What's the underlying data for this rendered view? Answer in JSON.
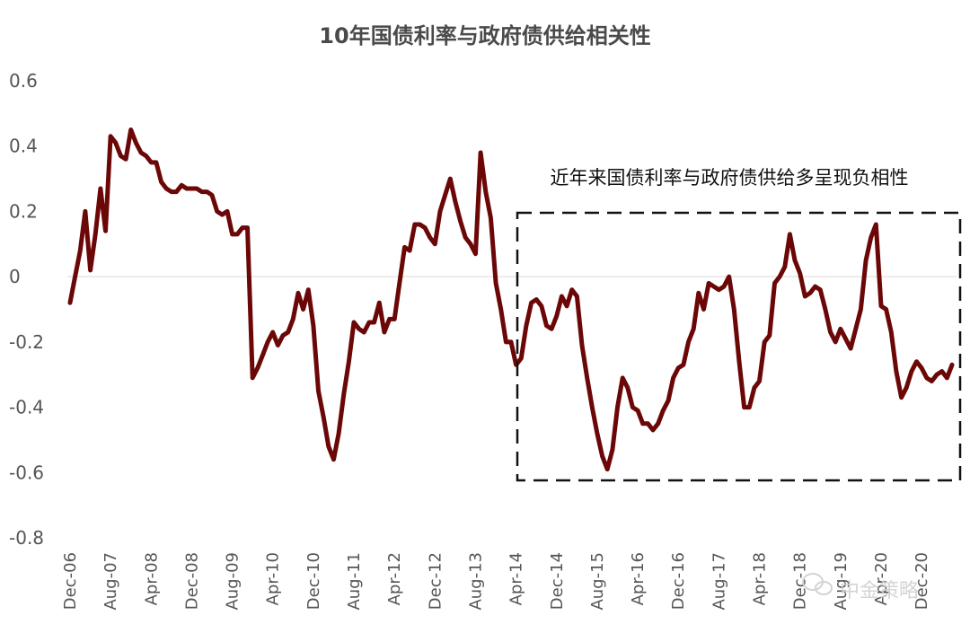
{
  "chart_data": {
    "type": "line",
    "title": "10年国债利率与政府债供给相关性",
    "xlabel": "",
    "ylabel": "",
    "ylim": [
      -0.8,
      0.6
    ],
    "y_ticks": [
      0.6,
      0.4,
      0.2,
      0,
      -0.2,
      -0.4,
      -0.6,
      -0.8
    ],
    "y_tick_labels": [
      "0.6",
      "0.4",
      "0.2",
      "0",
      "-0.2",
      "-0.4",
      "-0.6",
      "-0.8"
    ],
    "x_tick_labels": [
      "Dec-06",
      "Aug-07",
      "Apr-08",
      "Dec-08",
      "Aug-09",
      "Apr-10",
      "Dec-10",
      "Aug-11",
      "Apr-12",
      "Dec-12",
      "Aug-13",
      "Apr-14",
      "Dec-14",
      "Aug-15",
      "Apr-16",
      "Dec-16",
      "Aug-17",
      "Apr-18",
      "Dec-18",
      "Aug-19",
      "Apr-20",
      "Dec-20"
    ],
    "x_start": "2006-12",
    "grid": false,
    "zero_line": true,
    "series": [
      {
        "color": "#6b0707",
        "values": [
          -0.08,
          0.0,
          0.08,
          0.2,
          0.02,
          0.13,
          0.27,
          0.14,
          0.43,
          0.41,
          0.37,
          0.36,
          0.45,
          0.41,
          0.38,
          0.37,
          0.35,
          0.35,
          0.29,
          0.27,
          0.26,
          0.26,
          0.28,
          0.27,
          0.27,
          0.27,
          0.26,
          0.26,
          0.25,
          0.2,
          0.19,
          0.2,
          0.13,
          0.13,
          0.15,
          0.15,
          -0.31,
          -0.28,
          -0.24,
          -0.2,
          -0.17,
          -0.21,
          -0.18,
          -0.17,
          -0.13,
          -0.05,
          -0.1,
          -0.04,
          -0.15,
          -0.35,
          -0.43,
          -0.52,
          -0.56,
          -0.48,
          -0.36,
          -0.26,
          -0.14,
          -0.16,
          -0.17,
          -0.14,
          -0.14,
          -0.08,
          -0.17,
          -0.13,
          -0.13,
          -0.02,
          0.09,
          0.08,
          0.16,
          0.16,
          0.15,
          0.12,
          0.1,
          0.2,
          0.25,
          0.3,
          0.23,
          0.17,
          0.12,
          0.1,
          0.07,
          0.38,
          0.26,
          0.18,
          -0.02,
          -0.1,
          -0.2,
          -0.2,
          -0.27,
          -0.25,
          -0.15,
          -0.08,
          -0.07,
          -0.09,
          -0.15,
          -0.16,
          -0.12,
          -0.06,
          -0.09,
          -0.04,
          -0.06,
          -0.21,
          -0.31,
          -0.4,
          -0.48,
          -0.55,
          -0.59,
          -0.53,
          -0.4,
          -0.31,
          -0.34,
          -0.4,
          -0.41,
          -0.45,
          -0.45,
          -0.47,
          -0.45,
          -0.41,
          -0.38,
          -0.31,
          -0.28,
          -0.27,
          -0.2,
          -0.16,
          -0.05,
          -0.1,
          -0.02,
          -0.03,
          -0.04,
          -0.03,
          0.0,
          -0.1,
          -0.26,
          -0.4,
          -0.4,
          -0.34,
          -0.32,
          -0.2,
          -0.18,
          -0.02,
          0.0,
          0.03,
          0.13,
          0.05,
          0.01,
          -0.06,
          -0.05,
          -0.03,
          -0.04,
          -0.1,
          -0.17,
          -0.2,
          -0.16,
          -0.19,
          -0.22,
          -0.16,
          -0.1,
          0.05,
          0.12,
          0.16,
          -0.09,
          -0.1,
          -0.17,
          -0.29,
          -0.37,
          -0.34,
          -0.29,
          -0.26,
          -0.28,
          -0.31,
          -0.32,
          -0.3,
          -0.29,
          -0.31,
          -0.27
        ]
      }
    ],
    "annotations": [
      "近年来国债利率与政府债供给多呈现负相性"
    ]
  },
  "watermark": "中金策略",
  "watermark_icon": "wechat-icon"
}
